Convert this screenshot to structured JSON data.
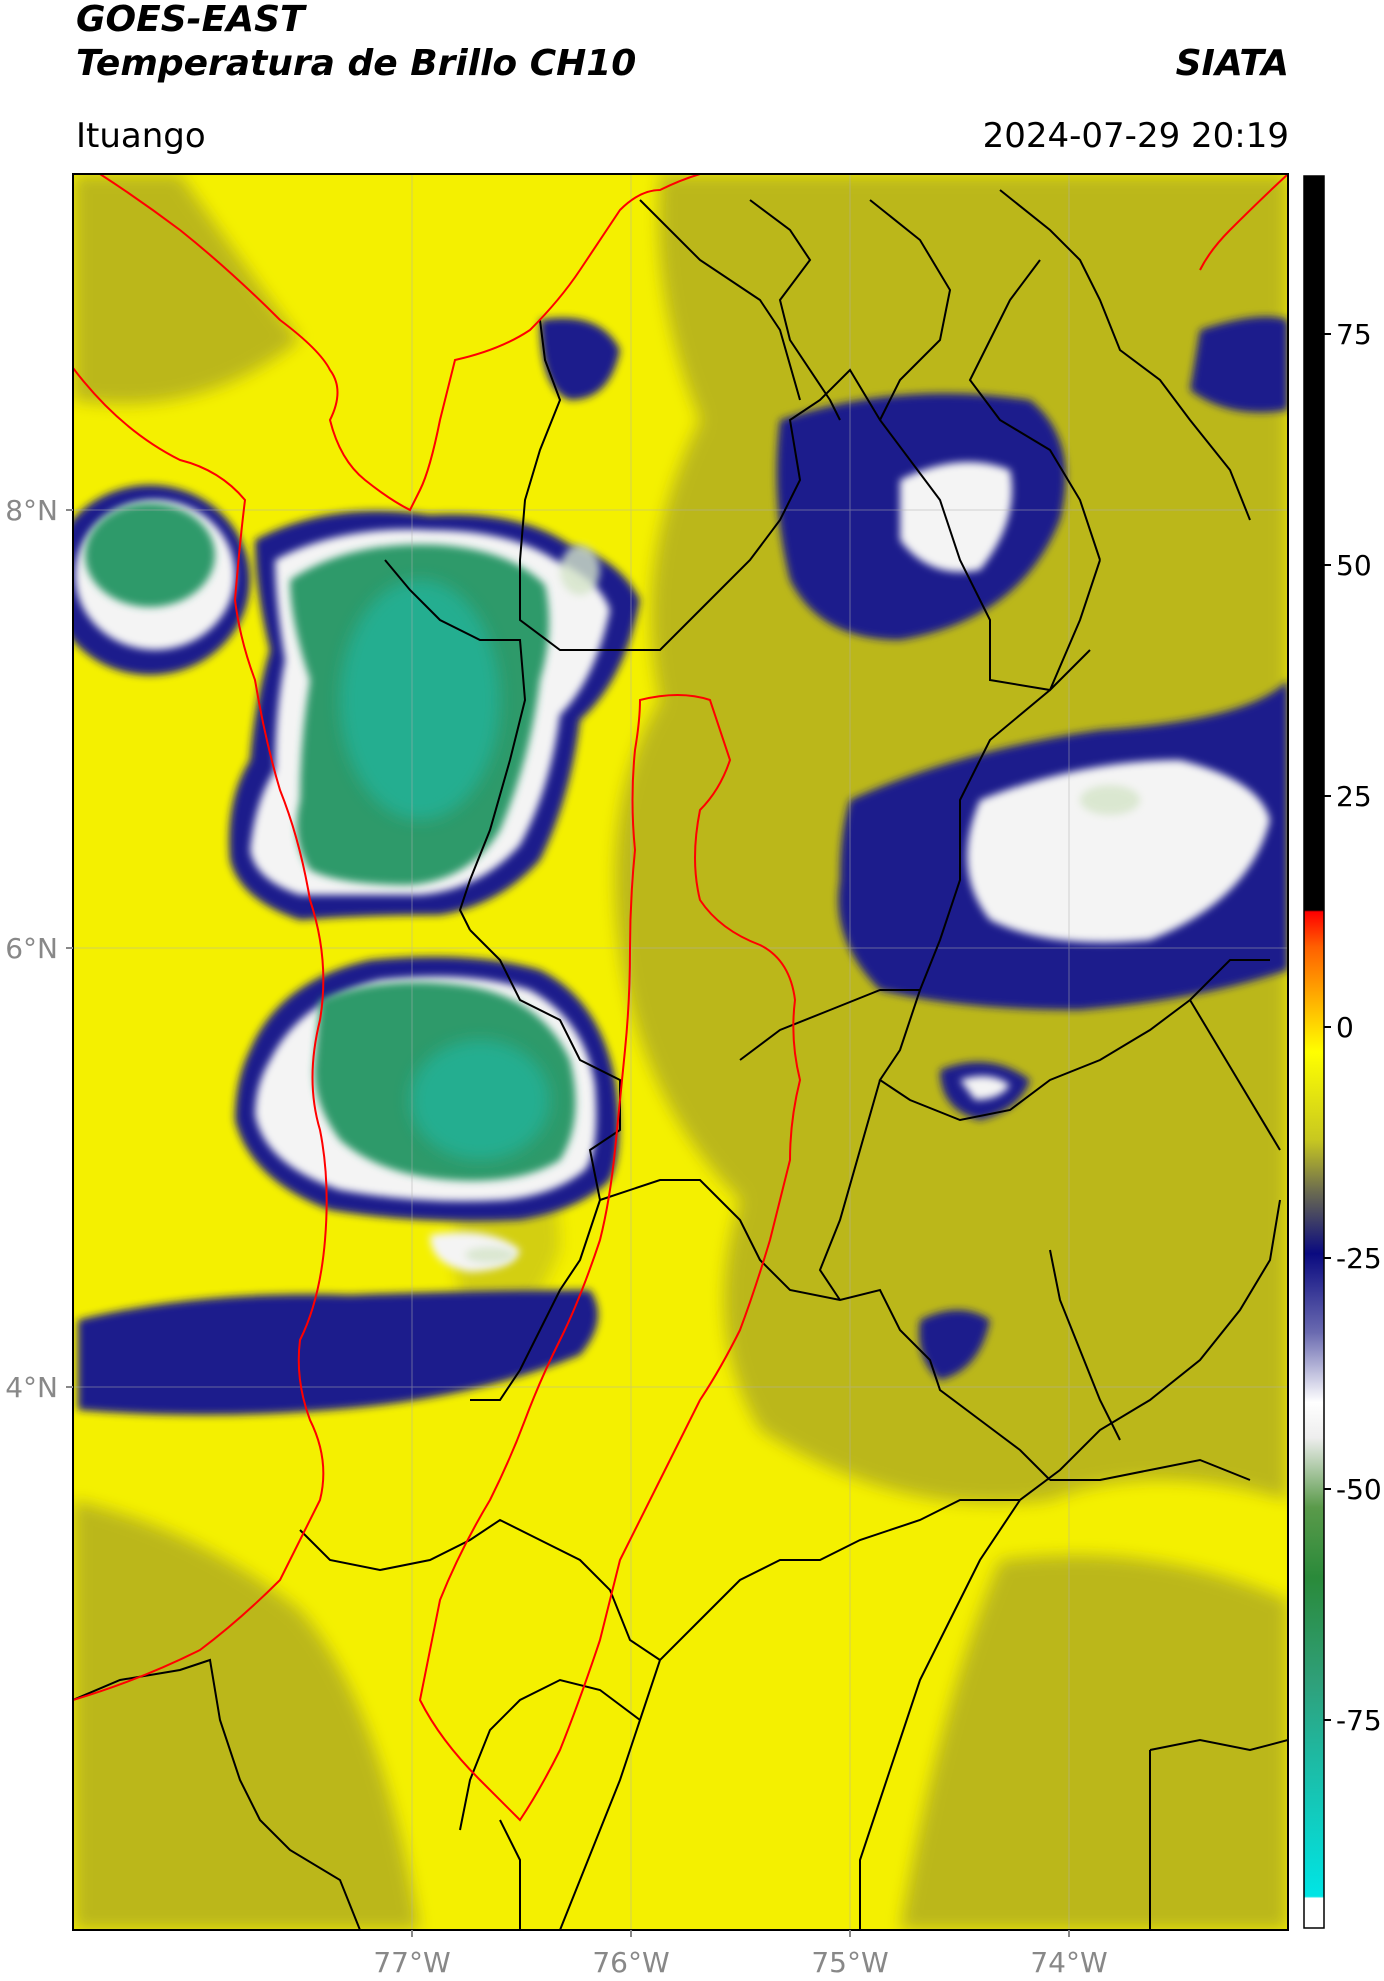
{
  "header": {
    "line1": "GOES-EAST",
    "line2": "Temperatura de Brillo CH10",
    "org": "SIATA",
    "place": "Ituango",
    "timestamp": "2024-07-29 20:19"
  },
  "axes": {
    "lat_labels": [
      "8°N",
      "6°N",
      "4°N"
    ],
    "lon_labels": [
      "77°W",
      "76°W",
      "75°W",
      "74°W"
    ]
  },
  "colorbar": {
    "ticks": [
      "75",
      "50",
      "25",
      "0",
      "-25",
      "-50",
      "-75"
    ]
  },
  "colors": {
    "background_yellow": "#f4f000",
    "olive": "#b8b61c",
    "navy": "#1a1a8a",
    "cloud_white": "#f4f4f4",
    "deep_green": "#2f9a6a",
    "border_black": "#000000",
    "border_red": "#ff0000"
  }
}
